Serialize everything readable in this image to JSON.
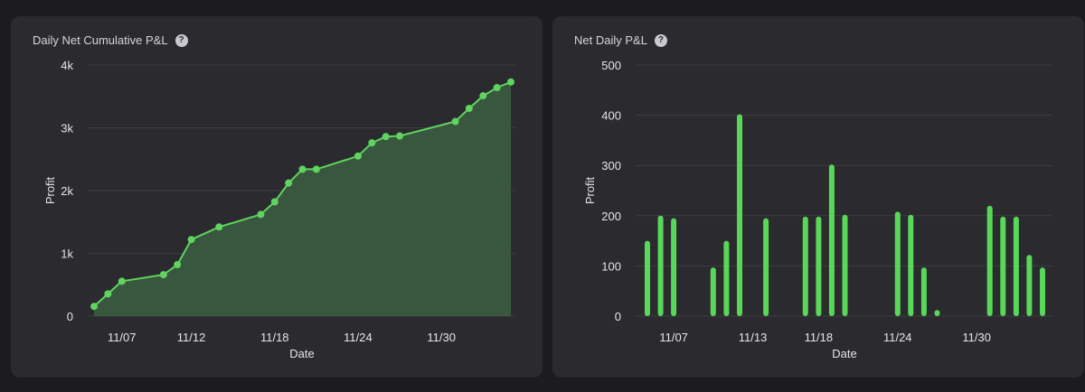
{
  "colors": {
    "line": "#5fd45f",
    "bar": "#58d758",
    "area": "#3a5a3f",
    "grid": "#3c3c42",
    "text": "#e6e6ea"
  },
  "chart_data": [
    {
      "type": "area",
      "title": "Daily Net Cumulative P&L",
      "xlabel": "Date",
      "ylabel": "Profit",
      "ylim": [
        0,
        4000
      ],
      "y_ticks": [
        0,
        1000,
        2000,
        3000,
        4000
      ],
      "y_tick_labels": [
        "0",
        "1k",
        "2k",
        "3k",
        "4k"
      ],
      "x_ticks": [
        "11/07",
        "11/12",
        "11/18",
        "11/24",
        "11/30"
      ],
      "grid": true,
      "legend": "none",
      "x": [
        "11/05",
        "11/06",
        "11/07",
        "11/10",
        "11/11",
        "11/12",
        "11/14",
        "11/17",
        "11/18",
        "11/19",
        "11/20",
        "11/21",
        "11/24",
        "11/25",
        "11/26",
        "11/27",
        "12/01",
        "12/02",
        "12/03",
        "12/04",
        "12/05"
      ],
      "values": [
        155,
        355,
        555,
        660,
        820,
        1220,
        1420,
        1620,
        1820,
        2120,
        2340,
        2340,
        2550,
        2760,
        2860,
        2870,
        3100,
        3310,
        3510,
        3640,
        3730
      ]
    },
    {
      "type": "bar",
      "title": "Net Daily P&L",
      "xlabel": "Date",
      "ylabel": "Profit",
      "ylim": [
        0,
        500
      ],
      "y_ticks": [
        0,
        100,
        200,
        300,
        400,
        500
      ],
      "x_ticks": [
        "11/07",
        "11/13",
        "11/18",
        "11/24",
        "11/30"
      ],
      "grid": true,
      "legend": "none",
      "x": [
        "11/05",
        "11/06",
        "11/07",
        "11/10",
        "11/11",
        "11/12",
        "11/14",
        "11/17",
        "11/18",
        "11/19",
        "11/20",
        "11/24",
        "11/25",
        "11/26",
        "11/27",
        "12/01",
        "12/02",
        "12/03",
        "12/04",
        "12/05"
      ],
      "values": [
        150,
        200,
        195,
        97,
        150,
        402,
        195,
        198,
        198,
        302,
        202,
        208,
        202,
        97,
        12,
        220,
        198,
        198,
        122,
        97
      ]
    }
  ]
}
